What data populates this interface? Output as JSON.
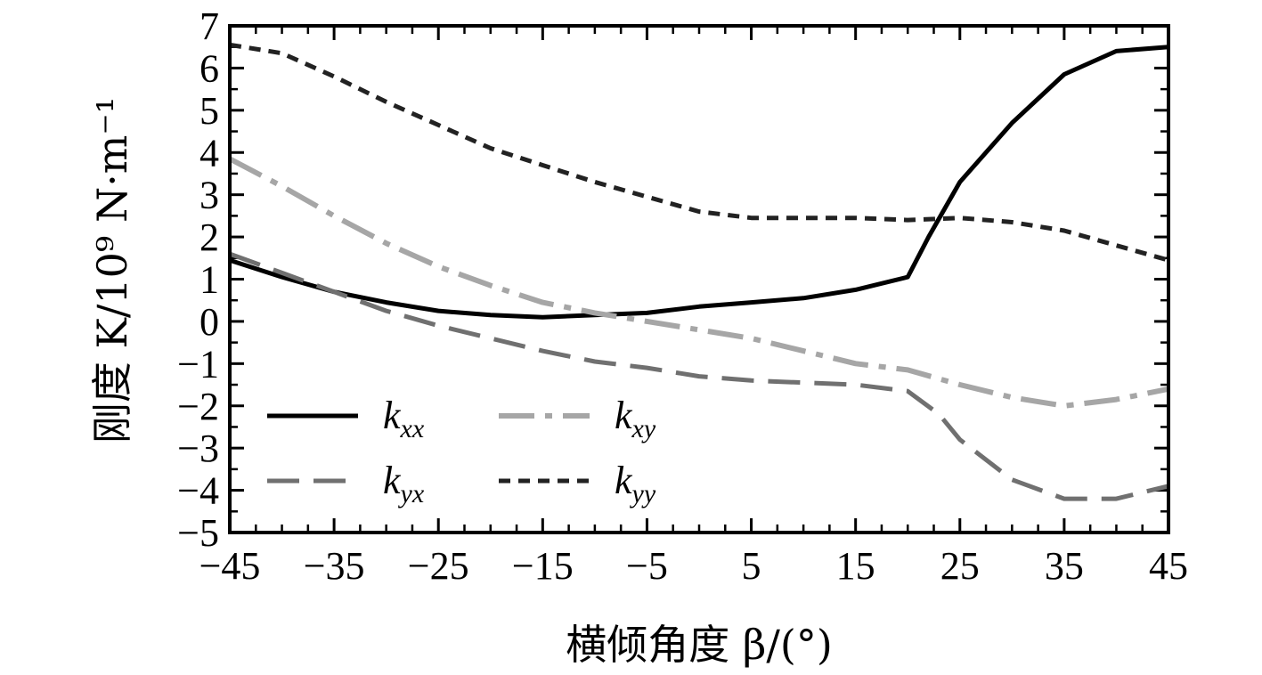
{
  "chart_data": {
    "type": "line",
    "xlabel": "横倾角度 β/(°)",
    "ylabel": "刚度 K/10⁹ N·m⁻¹",
    "xlim": [
      -45,
      45
    ],
    "ylim": [
      -5,
      7
    ],
    "xticks": [
      "−45",
      "−35",
      "−25",
      "−15",
      "−5",
      "5",
      "15",
      "25",
      "35",
      "45"
    ],
    "yticks": [
      "−5",
      "−4",
      "−3",
      "−2",
      "−1",
      "0",
      "1",
      "2",
      "3",
      "4",
      "5",
      "6",
      "7"
    ],
    "grid": false,
    "legend_position": "lower-left",
    "series": [
      {
        "name": "k_xx",
        "label_main": "k",
        "label_sub": "xx",
        "color": "#000000",
        "dash": "solid",
        "x": [
          -45,
          -40,
          -35,
          -30,
          -25,
          -20,
          -15,
          -10,
          -5,
          0,
          5,
          10,
          15,
          20,
          22,
          25,
          30,
          35,
          40,
          45
        ],
        "y": [
          1.45,
          1.05,
          0.7,
          0.45,
          0.25,
          0.15,
          0.1,
          0.15,
          0.2,
          0.35,
          0.45,
          0.55,
          0.75,
          1.05,
          2.0,
          3.3,
          4.7,
          5.85,
          6.4,
          6.5
        ]
      },
      {
        "name": "k_yx",
        "label_main": "k",
        "label_sub": "yx",
        "color": "#707070",
        "dash": "long-dash",
        "x": [
          -45,
          -40,
          -35,
          -30,
          -25,
          -20,
          -15,
          -10,
          -5,
          0,
          5,
          10,
          15,
          20,
          23,
          25,
          30,
          35,
          40,
          45
        ],
        "y": [
          1.6,
          1.15,
          0.7,
          0.25,
          -0.1,
          -0.4,
          -0.7,
          -0.95,
          -1.1,
          -1.3,
          -1.4,
          -1.45,
          -1.5,
          -1.65,
          -2.2,
          -2.8,
          -3.75,
          -4.2,
          -4.2,
          -3.9
        ]
      },
      {
        "name": "k_xy",
        "label_main": "k",
        "label_sub": "xy",
        "color": "#a6a6a6",
        "dash": "dash-dot",
        "x": [
          -45,
          -40,
          -35,
          -30,
          -25,
          -20,
          -15,
          -10,
          -5,
          0,
          5,
          10,
          15,
          20,
          25,
          30,
          35,
          40,
          45
        ],
        "y": [
          3.85,
          3.2,
          2.5,
          1.85,
          1.3,
          0.85,
          0.45,
          0.2,
          0.0,
          -0.2,
          -0.4,
          -0.7,
          -1.0,
          -1.15,
          -1.5,
          -1.8,
          -2.0,
          -1.85,
          -1.6
        ]
      },
      {
        "name": "k_yy",
        "label_main": "k",
        "label_sub": "yy",
        "color": "#222222",
        "dash": "short-dash",
        "x": [
          -45,
          -40,
          -35,
          -30,
          -25,
          -20,
          -15,
          -10,
          -5,
          0,
          5,
          10,
          15,
          20,
          25,
          30,
          35,
          40,
          45
        ],
        "y": [
          6.55,
          6.35,
          5.8,
          5.2,
          4.65,
          4.1,
          3.7,
          3.3,
          2.95,
          2.6,
          2.45,
          2.45,
          2.45,
          2.4,
          2.45,
          2.35,
          2.15,
          1.8,
          1.45
        ]
      }
    ]
  }
}
